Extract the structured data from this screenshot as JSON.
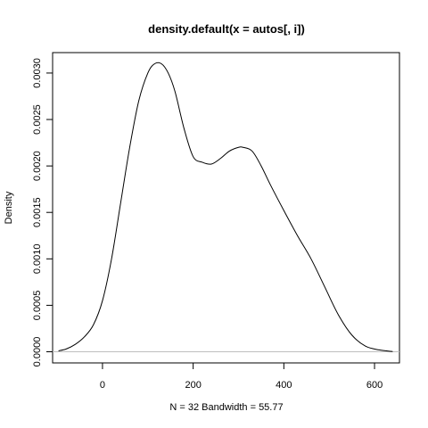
{
  "chart_data": {
    "type": "line",
    "title": "density.default(x = autos[, i])",
    "xlabel": "N = 32   Bandwidth = 55.77",
    "ylabel": "Density",
    "xlim": [
      -110,
      655
    ],
    "ylim": [
      -0.00012,
      0.00322
    ],
    "x_ticks": [
      0,
      200,
      400,
      600
    ],
    "x_tick_labels": [
      "0",
      "200",
      "400",
      "600"
    ],
    "y_ticks": [
      0,
      0.0005,
      0.001,
      0.0015,
      0.002,
      0.0025,
      0.003
    ],
    "y_tick_labels": [
      "0.0000",
      "0.0005",
      "0.0010",
      "0.0015",
      "0.0020",
      "0.0025",
      "0.0030"
    ],
    "baseline": 0,
    "grid": false,
    "legend": "none",
    "series": [
      {
        "x": [
          -97,
          -80,
          -60,
          -40,
          -20,
          0,
          20,
          40,
          60,
          80,
          100,
          115,
          130,
          145,
          160,
          180,
          200,
          220,
          240,
          260,
          280,
          300,
          310,
          330,
          350,
          370,
          400,
          430,
          460,
          490,
          520,
          550,
          580,
          610,
          640
        ],
        "values": [
          1e-05,
          3e-05,
          8e-05,
          0.00016,
          0.00029,
          0.00055,
          0.001,
          0.0016,
          0.0022,
          0.0027,
          0.003,
          0.0031,
          0.0031,
          0.003,
          0.0028,
          0.0024,
          0.0021,
          0.00204,
          0.00202,
          0.00208,
          0.00216,
          0.0022,
          0.0022,
          0.00216,
          0.002,
          0.0018,
          0.00152,
          0.00125,
          0.001,
          0.0007,
          0.0004,
          0.00018,
          6e-05,
          2e-05,
          2e-06
        ],
        "color": "#000000"
      }
    ]
  }
}
